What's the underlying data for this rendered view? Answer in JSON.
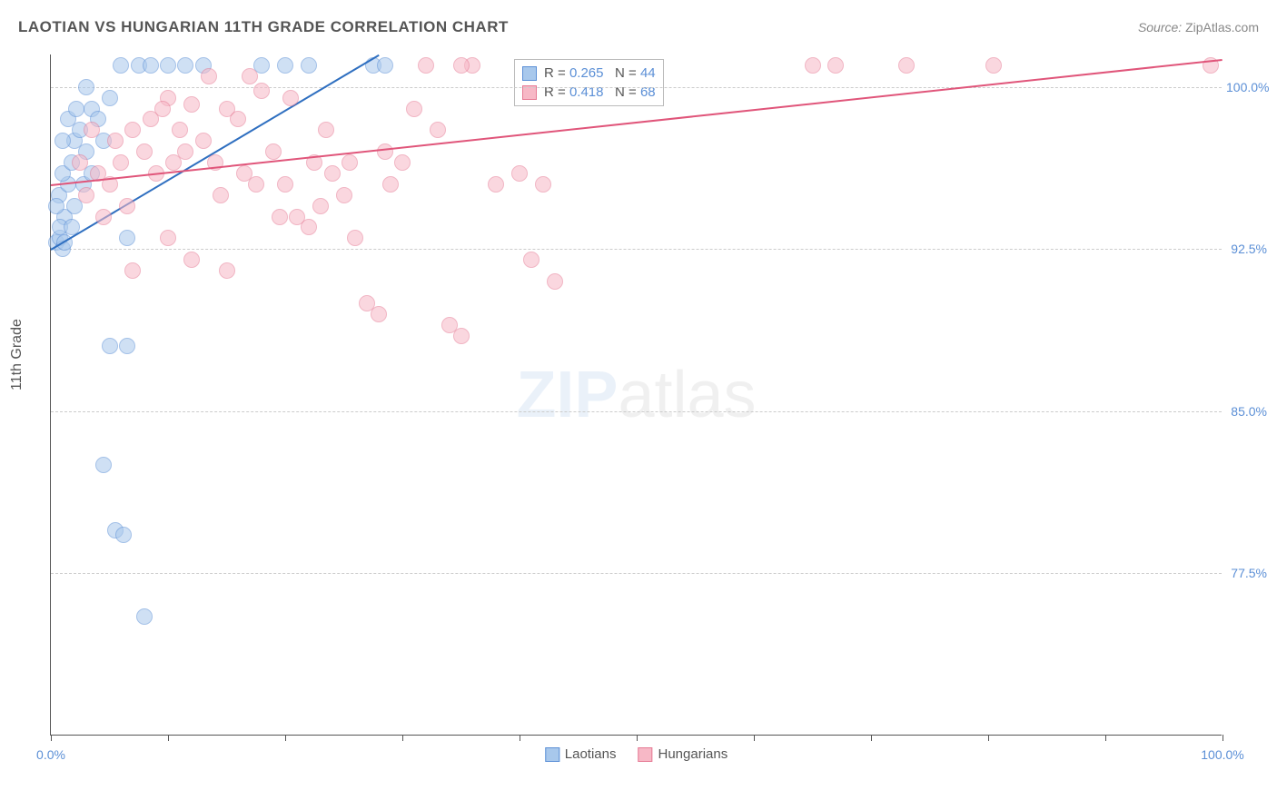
{
  "title": "LAOTIAN VS HUNGARIAN 11TH GRADE CORRELATION CHART",
  "source_label": "Source: ",
  "source_value": "ZipAtlas.com",
  "ylabel": "11th Grade",
  "watermark": {
    "part1": "ZIP",
    "part2": "atlas"
  },
  "plot": {
    "x_domain": [
      0,
      100
    ],
    "y_domain": [
      70,
      101.5
    ],
    "y_gridlines": [
      77.5,
      85.0,
      92.5,
      100.0
    ],
    "y_tick_labels": [
      "77.5%",
      "85.0%",
      "92.5%",
      "100.0%"
    ],
    "x_ticks": [
      0,
      10,
      20,
      30,
      40,
      50,
      60,
      70,
      80,
      90,
      100
    ],
    "x_tick_labels": {
      "0": "0.0%",
      "100": "100.0%"
    },
    "grid_color": "#cccccc",
    "axis_color": "#555555",
    "tick_label_color": "#5b8fd6"
  },
  "series": [
    {
      "name": "Laotians",
      "fill": "#a8c8ec",
      "stroke": "#5b8fd6",
      "marker_radius": 9,
      "fill_opacity": 0.55,
      "R": "0.265",
      "N": "44",
      "trend": {
        "x1": 0,
        "y1": 92.5,
        "x2": 28,
        "y2": 101.5,
        "color": "#2f6fc0",
        "width": 2
      },
      "points": [
        [
          0.5,
          92.8
        ],
        [
          0.8,
          93.0
        ],
        [
          1.0,
          92.5
        ],
        [
          1.2,
          94.0
        ],
        [
          0.7,
          95.0
        ],
        [
          1.5,
          95.5
        ],
        [
          1.0,
          96.0
        ],
        [
          2.0,
          97.5
        ],
        [
          0.5,
          94.5
        ],
        [
          1.8,
          96.5
        ],
        [
          2.5,
          98.0
        ],
        [
          3.0,
          97.0
        ],
        [
          2.0,
          94.5
        ],
        [
          3.5,
          99.0
        ],
        [
          4.0,
          98.5
        ],
        [
          1.2,
          92.8
        ],
        [
          5.0,
          88.0
        ],
        [
          6.5,
          88.0
        ],
        [
          4.5,
          82.5
        ],
        [
          5.5,
          79.5
        ],
        [
          6.2,
          79.3
        ],
        [
          8.0,
          75.5
        ],
        [
          1.0,
          97.5
        ],
        [
          1.5,
          98.5
        ],
        [
          2.8,
          95.5
        ],
        [
          0.8,
          93.5
        ],
        [
          3.5,
          96.0
        ],
        [
          6.0,
          101.0
        ],
        [
          7.5,
          101.0
        ],
        [
          8.5,
          101.0
        ],
        [
          10.0,
          101.0
        ],
        [
          11.5,
          101.0
        ],
        [
          13.0,
          101.0
        ],
        [
          18.0,
          101.0
        ],
        [
          20.0,
          101.0
        ],
        [
          22.0,
          101.0
        ],
        [
          27.5,
          101.0
        ],
        [
          28.5,
          101.0
        ],
        [
          4.5,
          97.5
        ],
        [
          5.0,
          99.5
        ],
        [
          3.0,
          100.0
        ],
        [
          2.2,
          99.0
        ],
        [
          1.8,
          93.5
        ],
        [
          6.5,
          93.0
        ]
      ]
    },
    {
      "name": "Hungarians",
      "fill": "#f7b8c6",
      "stroke": "#e67a94",
      "marker_radius": 9,
      "fill_opacity": 0.55,
      "R": "0.418",
      "N": "68",
      "trend": {
        "x1": 0,
        "y1": 95.5,
        "x2": 100,
        "y2": 101.3,
        "color": "#e0557a",
        "width": 2
      },
      "points": [
        [
          3.0,
          95.0
        ],
        [
          4.0,
          96.0
        ],
        [
          5.0,
          95.5
        ],
        [
          6.0,
          96.5
        ],
        [
          7.0,
          98.0
        ],
        [
          8.0,
          97.0
        ],
        [
          9.0,
          96.0
        ],
        [
          10.0,
          99.5
        ],
        [
          11.0,
          98.0
        ],
        [
          12.0,
          99.2
        ],
        [
          13.0,
          97.5
        ],
        [
          14.0,
          96.5
        ],
        [
          15.0,
          99.0
        ],
        [
          16.0,
          98.5
        ],
        [
          17.0,
          100.5
        ],
        [
          18.0,
          99.8
        ],
        [
          19.0,
          97.0
        ],
        [
          20.0,
          95.5
        ],
        [
          21.0,
          94.0
        ],
        [
          22.0,
          93.5
        ],
        [
          23.0,
          94.5
        ],
        [
          24.0,
          96.0
        ],
        [
          25.0,
          95.0
        ],
        [
          26.0,
          93.0
        ],
        [
          27.0,
          90.0
        ],
        [
          28.0,
          89.5
        ],
        [
          29.0,
          95.5
        ],
        [
          30.0,
          96.5
        ],
        [
          31.0,
          99.0
        ],
        [
          32.0,
          101.0
        ],
        [
          33.0,
          98.0
        ],
        [
          34.0,
          89.0
        ],
        [
          35.0,
          88.5
        ],
        [
          36.0,
          101.0
        ],
        [
          38.0,
          95.5
        ],
        [
          40.0,
          96.0
        ],
        [
          41.0,
          92.0
        ],
        [
          42.0,
          95.5
        ],
        [
          43.0,
          91.0
        ],
        [
          7.0,
          91.5
        ],
        [
          10.0,
          93.0
        ],
        [
          12.0,
          92.0
        ],
        [
          15.0,
          91.5
        ],
        [
          8.5,
          98.5
        ],
        [
          10.5,
          96.5
        ],
        [
          13.5,
          100.5
        ],
        [
          4.5,
          94.0
        ],
        [
          35.0,
          101.0
        ],
        [
          65.0,
          101.0
        ],
        [
          67.0,
          101.0
        ],
        [
          73.0,
          101.0
        ],
        [
          80.5,
          101.0
        ],
        [
          99.0,
          101.0
        ],
        [
          14.5,
          95.0
        ],
        [
          17.5,
          95.5
        ],
        [
          20.5,
          99.5
        ],
        [
          23.5,
          98.0
        ],
        [
          25.5,
          96.5
        ],
        [
          28.5,
          97.0
        ],
        [
          6.5,
          94.5
        ],
        [
          9.5,
          99.0
        ],
        [
          11.5,
          97.0
        ],
        [
          5.5,
          97.5
        ],
        [
          3.5,
          98.0
        ],
        [
          2.5,
          96.5
        ],
        [
          19.5,
          94.0
        ],
        [
          16.5,
          96.0
        ],
        [
          22.5,
          96.5
        ]
      ]
    }
  ],
  "legend": {
    "r_label": "R = ",
    "n_label": "N = "
  }
}
